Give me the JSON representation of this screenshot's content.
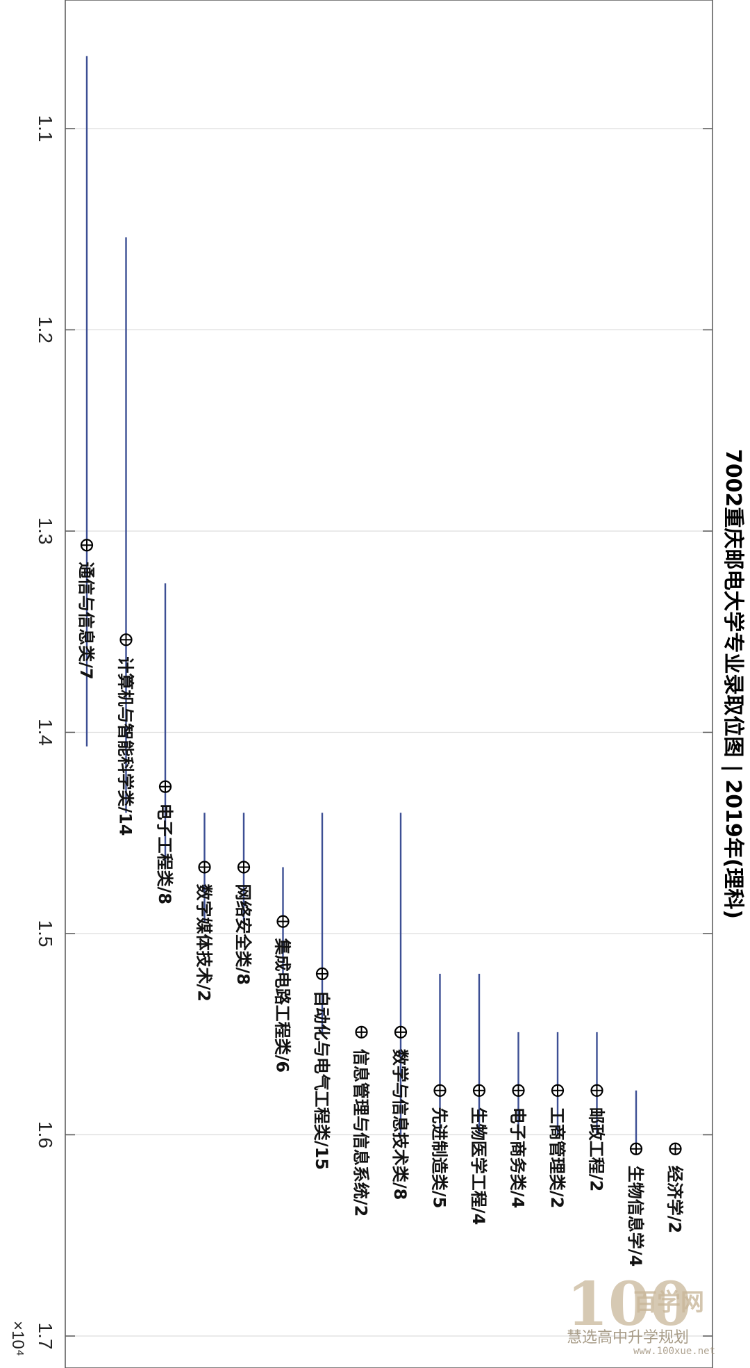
{
  "chart_data": {
    "type": "range",
    "title": "7002重庆邮电大学专业录取位图 | 2019年(理科)",
    "axis_exponent": "×10⁴",
    "ylim": [
      1.035,
      1.7
    ],
    "ticks": [
      "1.1",
      "1.2",
      "1.3",
      "1.4",
      "1.5",
      "1.6",
      "1.7"
    ],
    "tick_values": [
      1.1,
      1.2,
      1.3,
      1.4,
      1.5,
      1.6,
      1.7
    ],
    "grid": true,
    "categories": [
      "通信与信息类/7",
      "计算机与智能科学类/14",
      "电子工程类/8",
      "数字媒体技术/2",
      "网络安全类/8",
      "集成电路工程类/6",
      "自动化与电气工程类/15",
      "信息管理与信息系统/2",
      "数学与信息技术类/8",
      "先进制造类/5",
      "生物医学工程/4",
      "电子商务类/4",
      "工商管理类/2",
      "邮政工程/2",
      "生物信息学/4",
      "经济学/2"
    ],
    "series": [
      {
        "low": [
          1.064,
          1.154,
          1.326,
          1.44,
          1.44,
          1.467,
          1.44,
          null,
          1.44,
          1.52,
          1.52,
          1.549,
          1.549,
          1.549,
          1.578,
          null
        ],
        "mid": [
          1.307,
          1.354,
          1.427,
          1.467,
          1.467,
          1.494,
          1.52,
          1.549,
          1.549,
          1.578,
          1.578,
          1.578,
          1.578,
          1.578,
          1.607,
          1.607
        ],
        "high": [
          1.407,
          1.44,
          1.467,
          1.494,
          1.494,
          1.52,
          1.549,
          null,
          1.6,
          1.6,
          1.6,
          1.6,
          1.6,
          1.6,
          1.607,
          null
        ]
      }
    ]
  },
  "colors": {
    "range_line": "#3d4f94",
    "marker": "#000000",
    "grid": "#dddddd",
    "axis": "#555555"
  },
  "watermark": {
    "number": "100",
    "brand": "百学网",
    "subtitle": "慧选高中升学规划",
    "url": "www.100xue.net"
  }
}
